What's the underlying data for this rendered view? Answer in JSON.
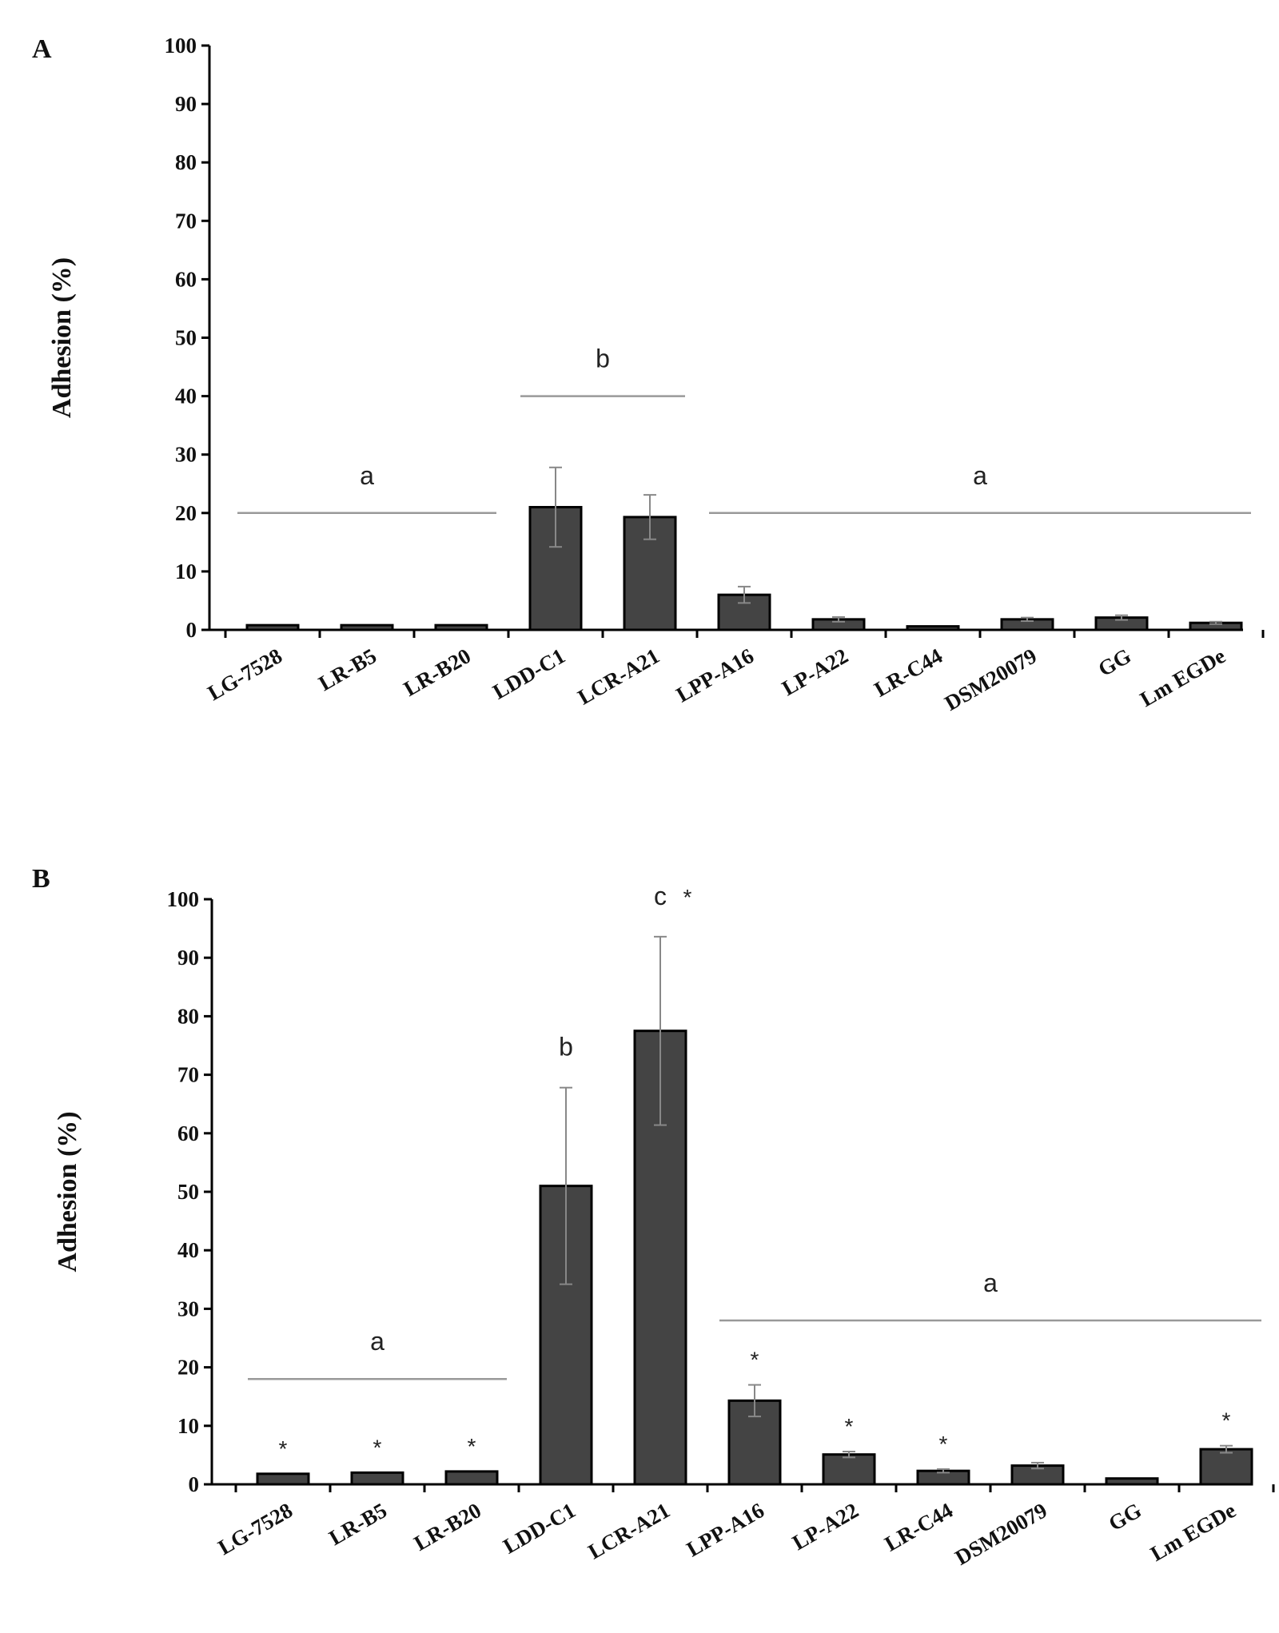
{
  "chart_data": [
    {
      "type": "bar",
      "panel": "A",
      "ylabel": "Adhesion (%)",
      "ylim": [
        0,
        100
      ],
      "yticks": [
        0,
        10,
        20,
        30,
        40,
        50,
        60,
        70,
        80,
        90,
        100
      ],
      "categories": [
        "LG-7528",
        "LR-B5",
        "LR-B20",
        "LDD-C1",
        "LCR-A21",
        "LPP-A16",
        "LP-A22",
        "LR-C44",
        "DSM20079",
        "GG",
        "Lm EGDe"
      ],
      "values": [
        0.8,
        0.8,
        0.8,
        21,
        19.3,
        6,
        1.8,
        0.6,
        1.8,
        2.1,
        1.2
      ],
      "errors": [
        0,
        0,
        0,
        6.8,
        3.8,
        1.4,
        0.4,
        0,
        0.3,
        0.4,
        0.2
      ],
      "stars": [
        false,
        false,
        false,
        false,
        false,
        false,
        false,
        false,
        false,
        false,
        false
      ],
      "groups": [
        {
          "label": "a",
          "from": 0,
          "to": 2,
          "level": 20
        },
        {
          "label": "b",
          "from": 3,
          "to": 4,
          "level": 40
        },
        {
          "label": "a",
          "from": 5,
          "to": 10,
          "level": 20
        }
      ]
    },
    {
      "type": "bar",
      "panel": "B",
      "ylabel": "Adhesion (%)",
      "ylim": [
        0,
        100
      ],
      "yticks": [
        0,
        10,
        20,
        30,
        40,
        50,
        60,
        70,
        80,
        90,
        100
      ],
      "categories": [
        "LG-7528",
        "LR-B5",
        "LR-B20",
        "LDD-C1",
        "LCR-A21",
        "LPP-A16",
        "LP-A22",
        "LR-C44",
        "DSM20079",
        "GG",
        "Lm EGDe"
      ],
      "values": [
        1.8,
        2,
        2.2,
        51,
        77.5,
        14.3,
        5.1,
        2.3,
        3.2,
        1,
        6
      ],
      "errors": [
        0,
        0,
        0,
        16.8,
        16.1,
        2.7,
        0.5,
        0.3,
        0.5,
        0,
        0.6
      ],
      "stars": [
        true,
        true,
        true,
        false,
        false,
        true,
        true,
        true,
        false,
        false,
        true
      ],
      "star_symbol": "*",
      "bar_labels": [
        {
          "index": 3,
          "text": "b"
        },
        {
          "index": 4,
          "text": "c"
        }
      ],
      "groups": [
        {
          "label": "a",
          "from": 0,
          "to": 2,
          "level": 18
        },
        {
          "label": "a",
          "from": 5,
          "to": 10,
          "level": 28
        }
      ]
    }
  ]
}
